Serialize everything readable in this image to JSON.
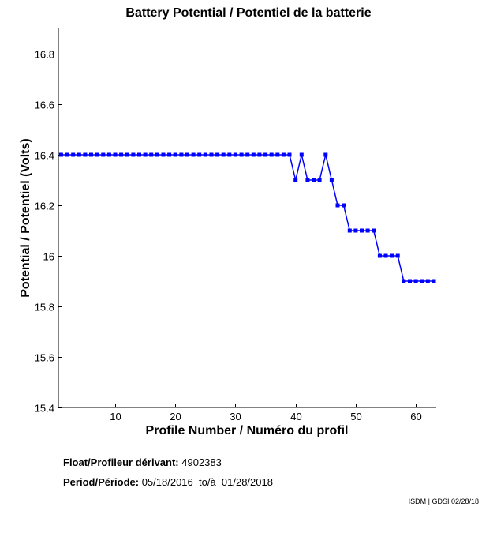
{
  "chart_data": {
    "type": "line",
    "title": "Battery Potential / Potentiel de la batterie",
    "xlabel": "Profile Number / Numéro du profil",
    "ylabel": "Potential / Potentiel (Volts)",
    "xlim": [
      0.55,
      63.4
    ],
    "ylim": [
      15.4,
      16.9
    ],
    "xticks": [
      10,
      20,
      30,
      40,
      50,
      60
    ],
    "xtick_labels": [
      "10",
      "20",
      "30",
      "40",
      "50",
      "60"
    ],
    "yticks": [
      15.4,
      15.6,
      15.8,
      16,
      16.2,
      16.4,
      16.6,
      16.8
    ],
    "ytick_labels": [
      "15.4",
      "15.6",
      "15.8",
      "16",
      "16.2",
      "16.4",
      "16.6",
      "16.8"
    ],
    "grid": false,
    "series": [
      {
        "name": "Battery Potential",
        "color": "#0000ff",
        "marker": "square",
        "x": [
          1,
          2,
          3,
          4,
          5,
          6,
          7,
          8,
          9,
          10,
          11,
          12,
          13,
          14,
          15,
          16,
          17,
          18,
          19,
          20,
          21,
          22,
          23,
          24,
          25,
          26,
          27,
          28,
          29,
          30,
          31,
          32,
          33,
          34,
          35,
          36,
          37,
          38,
          39,
          40,
          41,
          42,
          43,
          44,
          45,
          46,
          47,
          48,
          49,
          50,
          51,
          52,
          53,
          54,
          55,
          56,
          57,
          58,
          59,
          60,
          61,
          62,
          63
        ],
        "y": [
          16.4,
          16.4,
          16.4,
          16.4,
          16.4,
          16.4,
          16.4,
          16.4,
          16.4,
          16.4,
          16.4,
          16.4,
          16.4,
          16.4,
          16.4,
          16.4,
          16.4,
          16.4,
          16.4,
          16.4,
          16.4,
          16.4,
          16.4,
          16.4,
          16.4,
          16.4,
          16.4,
          16.4,
          16.4,
          16.4,
          16.4,
          16.4,
          16.4,
          16.4,
          16.4,
          16.4,
          16.4,
          16.4,
          16.4,
          16.3,
          16.4,
          16.3,
          16.3,
          16.3,
          16.4,
          16.3,
          16.2,
          16.2,
          16.1,
          16.1,
          16.1,
          16.1,
          16.1,
          16.0,
          16.0,
          16.0,
          16.0,
          15.9,
          15.9,
          15.9,
          15.9,
          15.9,
          15.9
        ]
      }
    ]
  },
  "info": {
    "float_label": "Float/Profileur dérivant:",
    "float_value": "4902383",
    "period_label": "Period/Période:",
    "period_value": "05/18/2016  to/à  01/28/2018"
  },
  "footer": "ISDM | GDSI 02/28/18"
}
